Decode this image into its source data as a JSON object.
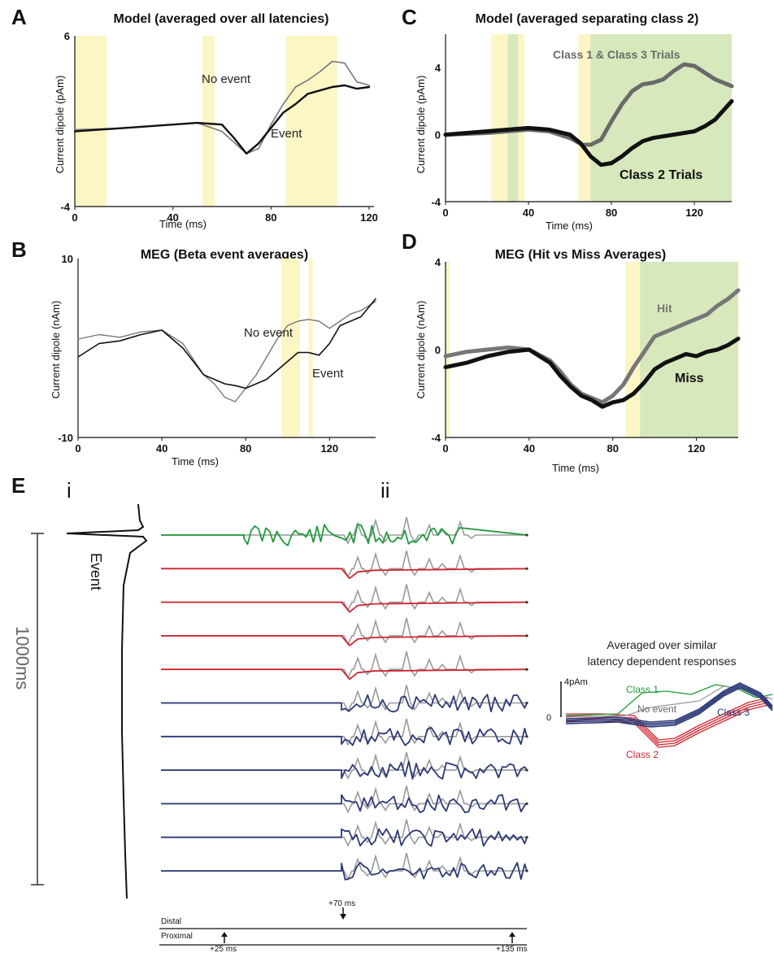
{
  "colors": {
    "highlight_yellow": "#fbf6c4",
    "highlight_green": "#d6e8bc",
    "event_black": "#111111",
    "no_event_gray": "#777777",
    "class1_green": "#1f9a3a",
    "class2_red": "#d0242e",
    "class3_blue": "#2b3a78",
    "trace_gray": "#9a9a9a"
  },
  "chart_data": [
    {
      "panel": "A",
      "type": "line",
      "title": "Model (averaged over all latencies)",
      "xlabel": "Time (ms)",
      "ylabel": "Current dipole (pAm)",
      "xlim": [
        0,
        122
      ],
      "ylim": [
        -4,
        6
      ],
      "xticks": [
        "0",
        "40",
        "80",
        "120"
      ],
      "yticks": [
        "6",
        "-4"
      ],
      "shaded_yellow": [
        [
          0,
          13
        ],
        [
          52,
          57
        ],
        [
          86,
          107
        ]
      ],
      "series": [
        {
          "name": "No event",
          "color": "#777777",
          "x": [
            0,
            20,
            40,
            50,
            60,
            70,
            75,
            80,
            85,
            90,
            95,
            100,
            105,
            110,
            115,
            120
          ],
          "y": [
            0.5,
            0.6,
            0.8,
            0.9,
            0.4,
            -0.9,
            -0.6,
            0.8,
            2.0,
            3.0,
            3.4,
            3.9,
            4.5,
            4.4,
            3.3,
            3.1
          ]
        },
        {
          "name": "Event",
          "color": "#111111",
          "x": [
            0,
            20,
            40,
            50,
            60,
            65,
            70,
            75,
            80,
            85,
            90,
            95,
            100,
            105,
            110,
            115,
            120
          ],
          "y": [
            0.4,
            0.6,
            0.8,
            0.9,
            0.8,
            0.0,
            -0.9,
            -0.3,
            0.6,
            1.5,
            2.0,
            2.6,
            2.8,
            3.0,
            3.1,
            2.9,
            3.0
          ]
        }
      ]
    },
    {
      "panel": "B",
      "type": "line",
      "title": "MEG (Beta event averages)",
      "xlabel": "Time (ms)",
      "ylabel": "Current dipole (nAm)",
      "xlim": [
        0,
        142
      ],
      "ylim": [
        -10,
        10
      ],
      "xticks": [
        "0",
        "40",
        "80",
        "120"
      ],
      "yticks": [
        "10",
        "-10"
      ],
      "shaded_yellow": [
        [
          97,
          106
        ],
        [
          110,
          112
        ]
      ],
      "series": [
        {
          "name": "No event",
          "color": "#777777",
          "x": [
            0,
            10,
            20,
            30,
            40,
            50,
            60,
            65,
            70,
            75,
            80,
            85,
            90,
            95,
            100,
            105,
            110,
            115,
            120,
            125,
            130,
            135,
            142
          ],
          "y": [
            1,
            1.5,
            1.2,
            1.8,
            2.0,
            0.5,
            -3.0,
            -4.0,
            -5.5,
            -6.0,
            -4.5,
            -3.0,
            -1.0,
            1.0,
            2.5,
            3.0,
            3.2,
            3.0,
            2.2,
            3.0,
            3.8,
            4.2,
            5.2
          ]
        },
        {
          "name": "Event",
          "color": "#111111",
          "x": [
            0,
            10,
            20,
            30,
            40,
            50,
            55,
            60,
            65,
            70,
            75,
            80,
            85,
            90,
            95,
            100,
            105,
            110,
            115,
            120,
            125,
            130,
            135,
            142
          ],
          "y": [
            -1,
            0.5,
            0.8,
            1.5,
            2.0,
            0.0,
            -1.5,
            -3.0,
            -3.5,
            -4.0,
            -4.2,
            -4.5,
            -4.0,
            -3.5,
            -2.5,
            -1.5,
            -0.5,
            -0.5,
            -0.8,
            0.5,
            2.5,
            3.0,
            3.5,
            5.5
          ]
        }
      ]
    },
    {
      "panel": "C",
      "type": "line",
      "title": "Model (averaged separating class 2)",
      "xlabel": "Time (ms)",
      "ylabel": "Current dipole (pAm)",
      "xlim": [
        0,
        138
      ],
      "ylim": [
        -4,
        6
      ],
      "xticks": [
        "0",
        "40",
        "80",
        "120"
      ],
      "yticks": [
        "4",
        "0",
        "-4"
      ],
      "shaded_yellow": [
        [
          22,
          38
        ],
        [
          64,
          70
        ]
      ],
      "shaded_green": [
        [
          30,
          35
        ],
        [
          70,
          138
        ]
      ],
      "series": [
        {
          "name": "Class 1 & Class 3 Trials",
          "color": "#6a6a6a",
          "x": [
            0,
            20,
            40,
            50,
            60,
            66,
            70,
            75,
            80,
            85,
            90,
            95,
            100,
            105,
            110,
            115,
            120,
            125,
            130,
            138
          ],
          "y": [
            0,
            0.1,
            0.3,
            0.2,
            -0.2,
            -0.6,
            -0.6,
            -0.3,
            0.8,
            1.8,
            2.6,
            3.0,
            3.1,
            3.3,
            3.8,
            4.2,
            4.1,
            3.7,
            3.3,
            2.9
          ]
        },
        {
          "name": "Class 2 Trials",
          "color": "#111111",
          "x": [
            0,
            20,
            40,
            50,
            60,
            65,
            70,
            75,
            80,
            85,
            90,
            95,
            100,
            110,
            120,
            125,
            130,
            138
          ],
          "y": [
            0,
            0.2,
            0.4,
            0.3,
            0.0,
            -0.5,
            -1.3,
            -1.8,
            -1.7,
            -1.3,
            -0.8,
            -0.4,
            -0.2,
            0.0,
            0.2,
            0.5,
            0.9,
            2.0
          ]
        }
      ]
    },
    {
      "panel": "D",
      "type": "line",
      "title": "MEG (Hit vs Miss Averages)",
      "xlabel": "Time (ms)",
      "ylabel": "Current dipole (nAm)",
      "xlim": [
        0,
        140
      ],
      "ylim": [
        -4,
        4
      ],
      "xticks": [
        "0",
        "40",
        "80",
        "120"
      ],
      "yticks": [
        "4",
        "0",
        "-4"
      ],
      "shaded_yellow": [
        [
          0,
          2
        ],
        [
          86,
          93
        ]
      ],
      "shaded_green": [
        [
          93,
          140
        ]
      ],
      "series": [
        {
          "name": "Hit",
          "color": "#777777",
          "x": [
            0,
            10,
            20,
            30,
            40,
            50,
            55,
            60,
            65,
            70,
            75,
            80,
            85,
            90,
            95,
            100,
            105,
            110,
            115,
            120,
            125,
            130,
            135,
            140
          ],
          "y": [
            -0.3,
            -0.1,
            0.0,
            0.1,
            0.0,
            -0.5,
            -1.0,
            -1.6,
            -2.0,
            -2.2,
            -2.4,
            -2.1,
            -1.6,
            -0.8,
            -0.1,
            0.6,
            0.8,
            1.0,
            1.2,
            1.4,
            1.6,
            2.0,
            2.3,
            2.7
          ]
        },
        {
          "name": "Miss",
          "color": "#111111",
          "x": [
            0,
            10,
            20,
            30,
            40,
            50,
            55,
            60,
            65,
            70,
            75,
            80,
            85,
            90,
            95,
            100,
            105,
            110,
            115,
            120,
            125,
            130,
            135,
            140
          ],
          "y": [
            -0.8,
            -0.6,
            -0.3,
            -0.1,
            0.0,
            -0.6,
            -1.2,
            -1.7,
            -2.1,
            -2.3,
            -2.6,
            -2.4,
            -2.3,
            -2.0,
            -1.5,
            -0.9,
            -0.6,
            -0.4,
            -0.2,
            -0.3,
            -0.1,
            0.0,
            0.2,
            0.5
          ]
        }
      ]
    }
  ],
  "panel_e": {
    "label": "E",
    "sub_i": "i",
    "sub_ii": "ii",
    "event_label": "Event",
    "scale_label": "1000ms",
    "trace_classes": [
      "green",
      "red",
      "red",
      "red",
      "red",
      "blue",
      "blue",
      "blue",
      "blue",
      "blue",
      "blue"
    ],
    "distal_label": "Distal",
    "proximal_label": "Proximal",
    "markers": [
      {
        "label": "+70 ms",
        "position": "distal"
      },
      {
        "label": "+25 ms",
        "position": "proximal"
      },
      {
        "label": "+135 ms",
        "position": "proximal"
      }
    ],
    "inset": {
      "title_line1": "Averaged over similar",
      "title_line2": "latency dependent responses",
      "scale_label": "4pAm",
      "zero_label": "0",
      "class1_label": "Class 1",
      "no_event_label": "No event",
      "class3_label": "Class 3",
      "class2_label": "Class 2"
    }
  },
  "text": {
    "a_no_event": "No event",
    "a_event": "Event",
    "b_no_event": "No event",
    "b_event": "Event",
    "c_class13": "Class 1 & Class 3 Trials",
    "c_class2": "Class 2 Trials",
    "d_hit": "Hit",
    "d_miss": "Miss"
  }
}
